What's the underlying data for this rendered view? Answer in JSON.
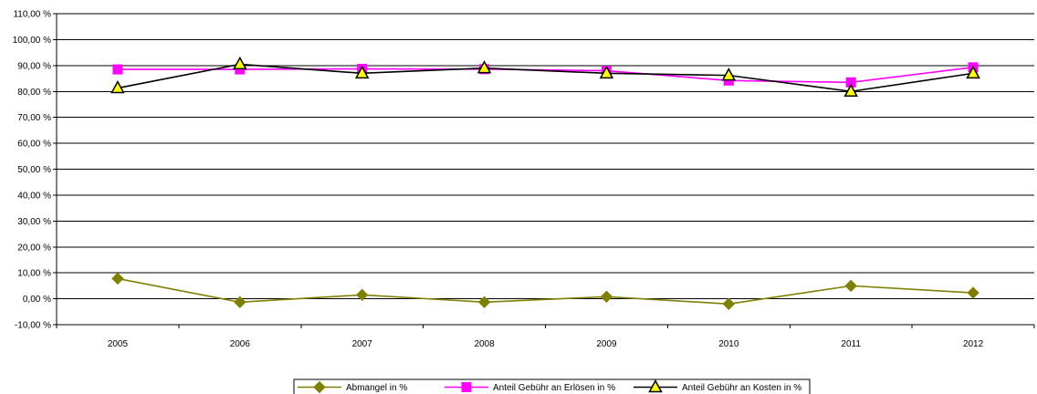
{
  "chart_data": {
    "type": "line",
    "title": "",
    "xlabel": "",
    "ylabel": "",
    "categories": [
      "2005",
      "2006",
      "2007",
      "2008",
      "2009",
      "2010",
      "2011",
      "2012"
    ],
    "ylim": [
      -10,
      110
    ],
    "ytick_step": 10,
    "yticks": [
      "-10,00 %",
      "0,00 %",
      "10,00 %",
      "20,00 %",
      "30,00 %",
      "40,00 %",
      "50,00 %",
      "60,00 %",
      "70,00 %",
      "80,00 %",
      "90,00 %",
      "100,00 %",
      "110,00 %"
    ],
    "grid": "horizontal",
    "legend_position": "bottom",
    "series": [
      {
        "name": "Abmangel in %",
        "values": [
          7.8,
          -1.3,
          1.5,
          -1.3,
          0.8,
          -2.0,
          5.0,
          2.3
        ],
        "color": "#808000",
        "marker": "diamond"
      },
      {
        "name": "Anteil Gebühr an Erlösen in %",
        "values": [
          88.5,
          88.5,
          88.7,
          88.6,
          88.0,
          84.2,
          83.5,
          89.3
        ],
        "color": "#FF00FF",
        "marker": "square"
      },
      {
        "name": "Anteil Gebühr an Kosten in %",
        "values": [
          81.3,
          90.5,
          87.0,
          89.0,
          87.0,
          86.2,
          80.0,
          87.0
        ],
        "color": "#000080",
        "marker": "triangle",
        "marker_fill": "#FFFF00"
      }
    ]
  }
}
